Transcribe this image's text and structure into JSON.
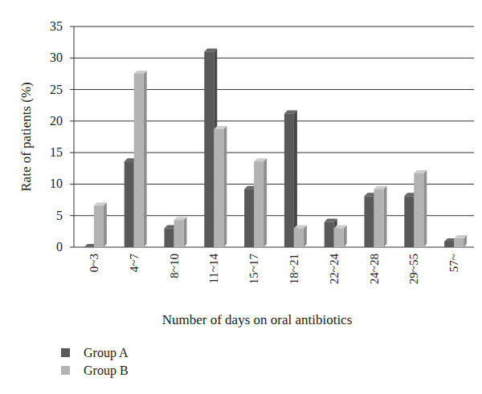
{
  "chart_data": {
    "type": "bar",
    "x_label": "Number of days on oral antibiotics",
    "y_label": "Rate of patients (%)",
    "categories": [
      "0~3",
      "4~7",
      "8~10",
      "11~14",
      "15~17",
      "18~21",
      "22~24",
      "24~28",
      "29~55",
      "57~"
    ],
    "series": [
      {
        "name": "Group A",
        "color": "#595959",
        "values": [
          0,
          13.6,
          3.0,
          31.0,
          9.2,
          21.2,
          4.0,
          8.1,
          8.1,
          0.9
        ]
      },
      {
        "name": "Group B",
        "color": "#b3b3b3",
        "values": [
          6.6,
          27.5,
          4.3,
          18.7,
          13.6,
          3.0,
          3.0,
          9.2,
          11.7,
          1.4
        ]
      }
    ],
    "ylim": [
      0,
      35
    ],
    "yticks": [
      0,
      5,
      10,
      15,
      20,
      25,
      30,
      35
    ],
    "grid": true,
    "legend": "bottom-left"
  }
}
